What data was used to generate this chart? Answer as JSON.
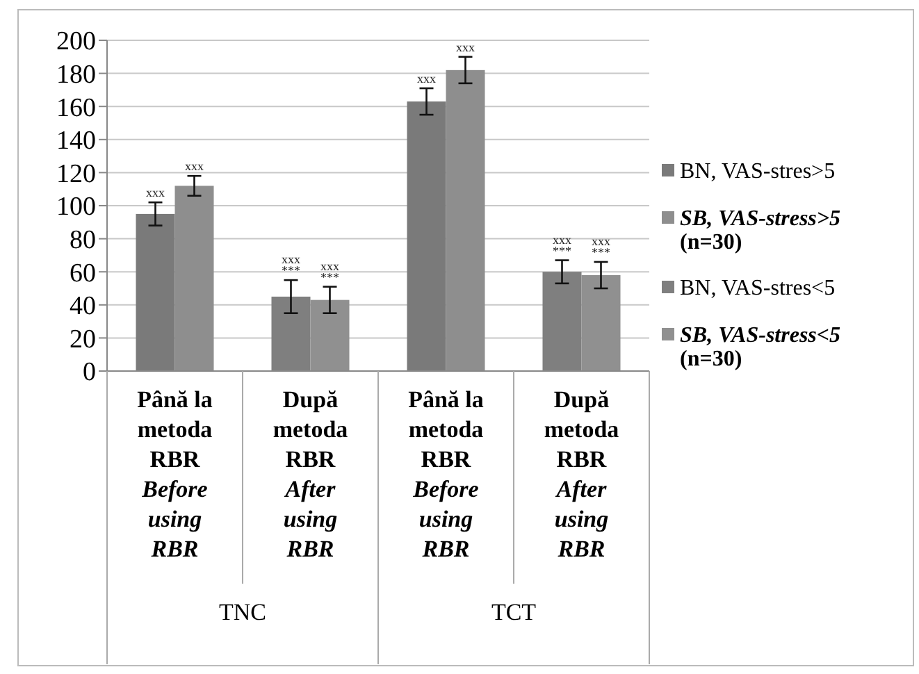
{
  "chart_data": {
    "type": "bar",
    "categories": [
      "Până la\nmetoda\nRBR\nBefore\nusing\nRBR",
      "După\nmetoda\nRBR\nAfter\nusing\nRBR",
      "Până la\nmetoda\nRBR\nBefore\nusing\nRBR",
      "După\nmetoda\nRBR\nAfter\nusing\nRBR"
    ],
    "series": [
      {
        "name": "BN, VAS-stres>5",
        "color": "#7a7a7a",
        "values": [
          95,
          null,
          163,
          null
        ],
        "errors": [
          7,
          null,
          8,
          null
        ],
        "value_labels": [
          "xxx",
          null,
          "xxx",
          null
        ]
      },
      {
        "name": "SB, VAS-stress>5\n(n=30)",
        "color": "#8e8e8e",
        "values": [
          112,
          null,
          182,
          null
        ],
        "errors": [
          6,
          null,
          8,
          null
        ],
        "value_labels": [
          "xxx",
          null,
          "xxx",
          null
        ]
      },
      {
        "name": "BN, VAS-stres<5",
        "color": "#7f7f7f",
        "values": [
          null,
          45,
          null,
          60
        ],
        "errors": [
          null,
          10,
          null,
          7
        ],
        "value_labels": [
          null,
          "xxx\n***",
          null,
          "xxx\n***"
        ]
      },
      {
        "name": "SB, VAS-stress<5\n(n=30)",
        "color": "#909090",
        "values": [
          null,
          43,
          null,
          58
        ],
        "errors": [
          null,
          8,
          null,
          8
        ],
        "value_labels": [
          null,
          "xxx\n***",
          null,
          "xxx\n***"
        ]
      }
    ],
    "annotations": [
      "TNC",
      "TCT"
    ],
    "ylim": [
      0,
      200
    ],
    "yticks": [
      0,
      20,
      40,
      60,
      80,
      100,
      120,
      140,
      160,
      180,
      200
    ],
    "grid": "y",
    "legend": "right"
  }
}
